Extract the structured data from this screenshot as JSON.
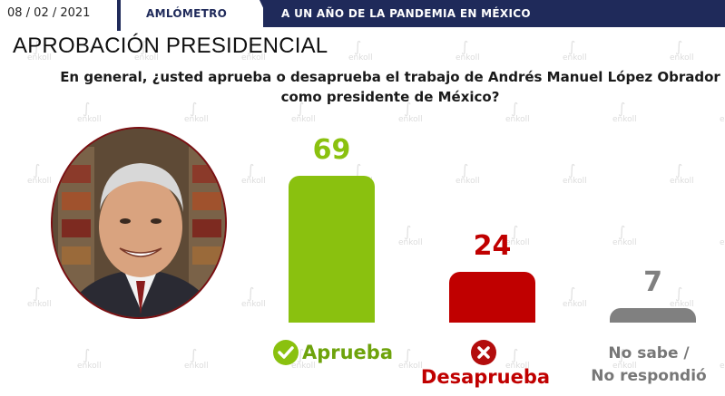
{
  "header": {
    "date": "08 / 02 / 2021",
    "section": "AMLÓMETRO",
    "banner": "A UN AÑO DE LA PANDEMIA EN MÉXICO"
  },
  "title": "APROBACIÓN PRESIDENCIAL",
  "question": "En general, ¿usted aprueba o desaprueba el trabajo de Andrés Manuel López Obrador como presidente de México?",
  "watermark": "enkoll",
  "colors": {
    "navy": "#1f2a5a",
    "approve": "#8ac10f",
    "disapprove": "#c00000",
    "unknown": "#808080"
  },
  "chart_data": {
    "type": "bar",
    "categories": [
      "Aprueba",
      "Desaprueba",
      "No sabe / No respondió"
    ],
    "values": [
      69,
      24,
      7
    ],
    "title": "APROBACIÓN PRESIDENCIAL",
    "xlabel": "",
    "ylabel": "",
    "ylim": [
      0,
      100
    ],
    "grid": false,
    "legend": "none"
  },
  "labels": {
    "approve": "Aprueba",
    "disapprove": "Desaprueba",
    "unknown_line1": "No sabe /",
    "unknown_line2": "No respondió"
  }
}
